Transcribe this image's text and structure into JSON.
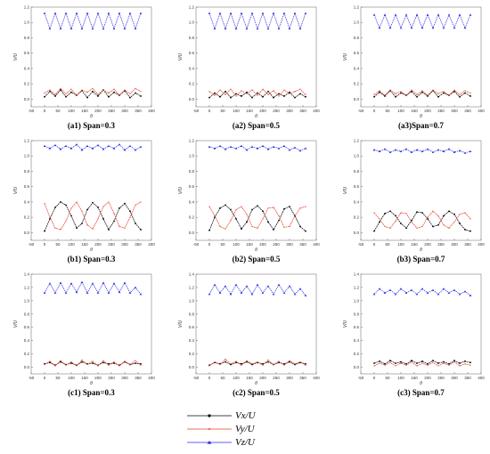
{
  "figure": {
    "legend": [
      {
        "label": "Vx/U",
        "color": "#000000"
      },
      {
        "label": "Vy/U",
        "color": "#e8402c"
      },
      {
        "label": "Vz/U",
        "color": "#2a2ae8"
      }
    ]
  },
  "chart_data": [
    {
      "type": "line",
      "caption": "(a1) Span=0.3",
      "xlabel": "θ",
      "ylabel": "V/U",
      "xlim": [
        -50,
        400
      ],
      "ylim": [
        -0.1,
        1.2
      ],
      "xticks": [
        -50,
        0,
        50,
        100,
        150,
        200,
        250,
        300,
        350,
        400
      ],
      "yticks": [
        0.0,
        0.2,
        0.4,
        0.6,
        0.8,
        1.0,
        1.2
      ],
      "x": [
        0,
        20,
        40,
        60,
        80,
        100,
        120,
        140,
        160,
        180,
        200,
        220,
        240,
        260,
        280,
        300,
        320,
        340,
        360
      ],
      "series": [
        {
          "name": "Vx/U",
          "color": "#000000",
          "values": [
            0.03,
            0.1,
            0.04,
            0.12,
            0.03,
            0.09,
            0.05,
            0.11,
            0.02,
            0.1,
            0.04,
            0.12,
            0.03,
            0.09,
            0.05,
            0.11,
            0.02,
            0.08,
            0.04
          ]
        },
        {
          "name": "Vy/U",
          "color": "#e8402c",
          "values": [
            0.08,
            0.12,
            0.06,
            0.14,
            0.07,
            0.13,
            0.05,
            0.12,
            0.09,
            0.14,
            0.06,
            0.12,
            0.08,
            0.13,
            0.05,
            0.12,
            0.07,
            0.14,
            0.1
          ]
        },
        {
          "name": "Vz/U",
          "color": "#2a2ae8",
          "values": [
            1.12,
            0.92,
            1.12,
            0.92,
            1.12,
            0.92,
            1.12,
            0.92,
            1.12,
            0.92,
            1.12,
            0.92,
            1.12,
            0.92,
            1.12,
            0.92,
            1.12,
            0.92,
            1.12
          ]
        }
      ]
    },
    {
      "type": "line",
      "caption": "(a2) Span=0.5",
      "xlabel": "θ",
      "ylabel": "V/U",
      "xlim": [
        -50,
        400
      ],
      "ylim": [
        -0.1,
        1.2
      ],
      "xticks": [
        -50,
        0,
        50,
        100,
        150,
        200,
        250,
        300,
        350,
        400
      ],
      "yticks": [
        0.0,
        0.2,
        0.4,
        0.6,
        0.8,
        1.0,
        1.2
      ],
      "x": [
        0,
        20,
        40,
        60,
        80,
        100,
        120,
        140,
        160,
        180,
        200,
        220,
        240,
        260,
        280,
        300,
        320,
        340,
        360
      ],
      "series": [
        {
          "name": "Vx/U",
          "color": "#000000",
          "values": [
            0.02,
            0.08,
            0.03,
            0.1,
            0.02,
            0.07,
            0.04,
            0.09,
            0.02,
            0.08,
            0.03,
            0.1,
            0.02,
            0.07,
            0.04,
            0.09,
            0.02,
            0.07,
            0.03
          ]
        },
        {
          "name": "Vy/U",
          "color": "#e8402c",
          "values": [
            0.1,
            0.05,
            0.12,
            0.06,
            0.13,
            0.04,
            0.11,
            0.07,
            0.12,
            0.05,
            0.13,
            0.06,
            0.11,
            0.04,
            0.12,
            0.07,
            0.1,
            0.13,
            0.06
          ]
        },
        {
          "name": "Vz/U",
          "color": "#2a2ae8",
          "values": [
            1.12,
            0.92,
            1.12,
            0.92,
            1.12,
            0.92,
            1.12,
            0.92,
            1.12,
            0.92,
            1.12,
            0.92,
            1.12,
            0.92,
            1.12,
            0.92,
            1.12,
            0.92,
            1.12
          ]
        }
      ]
    },
    {
      "type": "line",
      "caption": "(a3)Span=0.7",
      "xlabel": "θ",
      "ylabel": "V/U",
      "xlim": [
        -50,
        400
      ],
      "ylim": [
        -0.1,
        1.2
      ],
      "xticks": [
        -50,
        0,
        50,
        100,
        150,
        200,
        250,
        300,
        350,
        400
      ],
      "yticks": [
        0.0,
        0.2,
        0.4,
        0.6,
        0.8,
        1.0,
        1.2
      ],
      "x": [
        0,
        20,
        40,
        60,
        80,
        100,
        120,
        140,
        160,
        180,
        200,
        220,
        240,
        260,
        280,
        300,
        320,
        340,
        360
      ],
      "series": [
        {
          "name": "Vx/U",
          "color": "#000000",
          "values": [
            0.03,
            0.09,
            0.04,
            0.11,
            0.03,
            0.08,
            0.05,
            0.1,
            0.03,
            0.09,
            0.04,
            0.11,
            0.03,
            0.08,
            0.05,
            0.1,
            0.03,
            0.08,
            0.04
          ]
        },
        {
          "name": "Vy/U",
          "color": "#e8402c",
          "values": [
            0.06,
            0.11,
            0.05,
            0.12,
            0.07,
            0.1,
            0.05,
            0.12,
            0.06,
            0.11,
            0.05,
            0.12,
            0.07,
            0.1,
            0.05,
            0.12,
            0.06,
            0.11,
            0.08
          ]
        },
        {
          "name": "Vz/U",
          "color": "#2a2ae8",
          "values": [
            1.1,
            0.93,
            1.1,
            0.93,
            1.1,
            0.93,
            1.1,
            0.93,
            1.1,
            0.93,
            1.1,
            0.93,
            1.1,
            0.93,
            1.1,
            0.93,
            1.1,
            0.93,
            1.1
          ]
        }
      ]
    },
    {
      "type": "line",
      "caption": "(b1) Span=0.3",
      "xlabel": "θ",
      "ylabel": "V/U",
      "xlim": [
        -50,
        400
      ],
      "ylim": [
        -0.1,
        1.2
      ],
      "xticks": [
        -50,
        0,
        50,
        100,
        150,
        200,
        250,
        300,
        350,
        400
      ],
      "yticks": [
        0.0,
        0.2,
        0.4,
        0.6,
        0.8,
        1.0,
        1.2
      ],
      "x": [
        0,
        20,
        40,
        60,
        80,
        100,
        120,
        140,
        160,
        180,
        200,
        220,
        240,
        260,
        280,
        300,
        320,
        340,
        360
      ],
      "series": [
        {
          "name": "Vx/U",
          "color": "#000000",
          "values": [
            0.02,
            0.18,
            0.33,
            0.4,
            0.36,
            0.22,
            0.06,
            0.12,
            0.3,
            0.39,
            0.33,
            0.18,
            0.04,
            0.15,
            0.32,
            0.38,
            0.28,
            0.12,
            0.04
          ]
        },
        {
          "name": "Vy/U",
          "color": "#e8402c",
          "values": [
            0.38,
            0.2,
            0.06,
            0.04,
            0.15,
            0.32,
            0.4,
            0.28,
            0.1,
            0.05,
            0.18,
            0.34,
            0.4,
            0.25,
            0.08,
            0.06,
            0.2,
            0.36,
            0.4
          ]
        },
        {
          "name": "Vz/U",
          "color": "#2a2ae8",
          "values": [
            1.13,
            1.1,
            1.14,
            1.09,
            1.13,
            1.1,
            1.15,
            1.08,
            1.13,
            1.1,
            1.14,
            1.09,
            1.13,
            1.1,
            1.15,
            1.08,
            1.13,
            1.08,
            1.12
          ]
        }
      ]
    },
    {
      "type": "line",
      "caption": "(b2) Span=0.5",
      "xlabel": "θ",
      "ylabel": "V/U",
      "xlim": [
        -50,
        400
      ],
      "ylim": [
        -0.1,
        1.2
      ],
      "xticks": [
        -50,
        0,
        50,
        100,
        150,
        200,
        250,
        300,
        350,
        400
      ],
      "yticks": [
        0.0,
        0.2,
        0.4,
        0.6,
        0.8,
        1.0,
        1.2
      ],
      "x": [
        0,
        20,
        40,
        60,
        80,
        100,
        120,
        140,
        160,
        180,
        200,
        220,
        240,
        260,
        280,
        300,
        320,
        340,
        360
      ],
      "series": [
        {
          "name": "Vx/U",
          "color": "#000000",
          "values": [
            0.03,
            0.2,
            0.32,
            0.36,
            0.3,
            0.18,
            0.05,
            0.14,
            0.3,
            0.35,
            0.28,
            0.14,
            0.04,
            0.16,
            0.31,
            0.34,
            0.22,
            0.08,
            0.02
          ]
        },
        {
          "name": "Vy/U",
          "color": "#e8402c",
          "values": [
            0.34,
            0.22,
            0.08,
            0.05,
            0.16,
            0.3,
            0.34,
            0.24,
            0.08,
            0.06,
            0.18,
            0.32,
            0.33,
            0.22,
            0.07,
            0.08,
            0.22,
            0.32,
            0.34
          ]
        },
        {
          "name": "Vz/U",
          "color": "#2a2ae8",
          "values": [
            1.12,
            1.1,
            1.13,
            1.09,
            1.12,
            1.1,
            1.13,
            1.08,
            1.12,
            1.1,
            1.13,
            1.09,
            1.12,
            1.1,
            1.13,
            1.08,
            1.11,
            1.07,
            1.1
          ]
        }
      ]
    },
    {
      "type": "line",
      "caption": "(b3) Span=0.7",
      "xlabel": "θ",
      "ylabel": "V/U",
      "xlim": [
        -50,
        400
      ],
      "ylim": [
        -0.1,
        1.2
      ],
      "xticks": [
        -50,
        0,
        50,
        100,
        150,
        200,
        250,
        300,
        350,
        400
      ],
      "yticks": [
        0.0,
        0.2,
        0.4,
        0.6,
        0.8,
        1.0,
        1.2
      ],
      "x": [
        0,
        20,
        40,
        60,
        80,
        100,
        120,
        140,
        160,
        180,
        200,
        220,
        240,
        260,
        280,
        300,
        320,
        340,
        360
      ],
      "series": [
        {
          "name": "Vx/U",
          "color": "#000000",
          "values": [
            0.02,
            0.14,
            0.25,
            0.28,
            0.22,
            0.12,
            0.06,
            0.16,
            0.27,
            0.26,
            0.18,
            0.08,
            0.1,
            0.22,
            0.28,
            0.24,
            0.12,
            0.04,
            0.02
          ]
        },
        {
          "name": "Vy/U",
          "color": "#e8402c",
          "values": [
            0.26,
            0.18,
            0.08,
            0.06,
            0.15,
            0.26,
            0.25,
            0.14,
            0.06,
            0.08,
            0.2,
            0.28,
            0.22,
            0.1,
            0.06,
            0.14,
            0.24,
            0.26,
            0.18
          ]
        },
        {
          "name": "Vz/U",
          "color": "#2a2ae8",
          "values": [
            1.08,
            1.06,
            1.09,
            1.05,
            1.08,
            1.06,
            1.09,
            1.05,
            1.08,
            1.06,
            1.09,
            1.05,
            1.08,
            1.06,
            1.09,
            1.05,
            1.07,
            1.04,
            1.06
          ]
        }
      ]
    },
    {
      "type": "line",
      "caption": "(c1) Span=0.3",
      "xlabel": "θ",
      "ylabel": "V/U",
      "xlim": [
        -50,
        400
      ],
      "ylim": [
        -0.1,
        1.4
      ],
      "xticks": [
        -50,
        0,
        50,
        100,
        150,
        200,
        250,
        300,
        350,
        400
      ],
      "yticks": [
        0.0,
        0.2,
        0.4,
        0.6,
        0.8,
        1.0,
        1.2,
        1.4
      ],
      "x": [
        0,
        20,
        40,
        60,
        80,
        100,
        120,
        140,
        160,
        180,
        200,
        220,
        240,
        260,
        280,
        300,
        320,
        340,
        360
      ],
      "series": [
        {
          "name": "Vx/U",
          "color": "#000000",
          "values": [
            0.05,
            0.07,
            0.03,
            0.08,
            0.04,
            0.06,
            0.03,
            0.08,
            0.05,
            0.06,
            0.03,
            0.07,
            0.05,
            0.06,
            0.03,
            0.08,
            0.04,
            0.06,
            0.05
          ]
        },
        {
          "name": "Vy/U",
          "color": "#e8402c",
          "values": [
            0.04,
            0.09,
            0.02,
            0.1,
            0.03,
            0.08,
            0.02,
            0.11,
            0.04,
            0.09,
            0.02,
            0.1,
            0.03,
            0.08,
            0.02,
            0.09,
            0.04,
            0.1,
            0.03
          ]
        },
        {
          "name": "Vz/U",
          "color": "#2a2ae8",
          "values": [
            1.12,
            1.26,
            1.12,
            1.27,
            1.12,
            1.26,
            1.13,
            1.28,
            1.12,
            1.26,
            1.12,
            1.27,
            1.12,
            1.26,
            1.13,
            1.27,
            1.12,
            1.2,
            1.1
          ]
        }
      ]
    },
    {
      "type": "line",
      "caption": "(c2) Span=0.5",
      "xlabel": "θ",
      "ylabel": "V/U",
      "xlim": [
        -50,
        400
      ],
      "ylim": [
        -0.1,
        1.4
      ],
      "xticks": [
        -50,
        0,
        50,
        100,
        150,
        200,
        250,
        300,
        350,
        400
      ],
      "yticks": [
        0.0,
        0.2,
        0.4,
        0.6,
        0.8,
        1.0,
        1.2,
        1.4
      ],
      "x": [
        0,
        20,
        40,
        60,
        80,
        100,
        120,
        140,
        160,
        180,
        200,
        220,
        240,
        260,
        280,
        300,
        320,
        340,
        360
      ],
      "series": [
        {
          "name": "Vx/U",
          "color": "#000000",
          "values": [
            0.03,
            0.07,
            0.05,
            0.08,
            0.04,
            0.07,
            0.05,
            0.08,
            0.04,
            0.07,
            0.05,
            0.08,
            0.04,
            0.07,
            0.05,
            0.08,
            0.04,
            0.07,
            0.05
          ]
        },
        {
          "name": "Vy/U",
          "color": "#e8402c",
          "values": [
            0.02,
            0.08,
            0.04,
            0.12,
            0.05,
            0.09,
            0.03,
            0.1,
            0.05,
            0.08,
            0.03,
            0.11,
            0.04,
            0.09,
            0.03,
            0.1,
            0.05,
            0.08,
            0.03
          ]
        },
        {
          "name": "Vz/U",
          "color": "#2a2ae8",
          "values": [
            1.1,
            1.24,
            1.12,
            1.22,
            1.1,
            1.24,
            1.12,
            1.22,
            1.1,
            1.24,
            1.12,
            1.22,
            1.1,
            1.24,
            1.12,
            1.22,
            1.1,
            1.18,
            1.08
          ]
        }
      ]
    },
    {
      "type": "line",
      "caption": "(c3) Span=0.7",
      "xlabel": "θ",
      "ylabel": "V/U",
      "xlim": [
        -50,
        400
      ],
      "ylim": [
        -0.1,
        1.4
      ],
      "xticks": [
        -50,
        0,
        50,
        100,
        150,
        200,
        250,
        300,
        350,
        400
      ],
      "yticks": [
        0.0,
        0.2,
        0.4,
        0.6,
        0.8,
        1.0,
        1.2,
        1.4
      ],
      "x": [
        0,
        20,
        40,
        60,
        80,
        100,
        120,
        140,
        160,
        180,
        200,
        220,
        240,
        260,
        280,
        300,
        320,
        340,
        360
      ],
      "series": [
        {
          "name": "Vx/U",
          "color": "#000000",
          "values": [
            0.06,
            0.09,
            0.05,
            0.1,
            0.06,
            0.08,
            0.05,
            0.1,
            0.06,
            0.09,
            0.05,
            0.1,
            0.06,
            0.08,
            0.05,
            0.1,
            0.06,
            0.09,
            0.07
          ]
        },
        {
          "name": "Vy/U",
          "color": "#e8402c",
          "values": [
            0.02,
            0.06,
            0.03,
            0.07,
            0.02,
            0.06,
            0.03,
            0.08,
            0.02,
            0.06,
            0.03,
            0.07,
            0.02,
            0.06,
            0.03,
            0.08,
            0.02,
            0.05,
            0.03
          ]
        },
        {
          "name": "Vz/U",
          "color": "#2a2ae8",
          "values": [
            1.1,
            1.18,
            1.12,
            1.16,
            1.1,
            1.18,
            1.12,
            1.16,
            1.1,
            1.18,
            1.12,
            1.16,
            1.1,
            1.18,
            1.12,
            1.16,
            1.1,
            1.14,
            1.08
          ]
        }
      ]
    }
  ]
}
